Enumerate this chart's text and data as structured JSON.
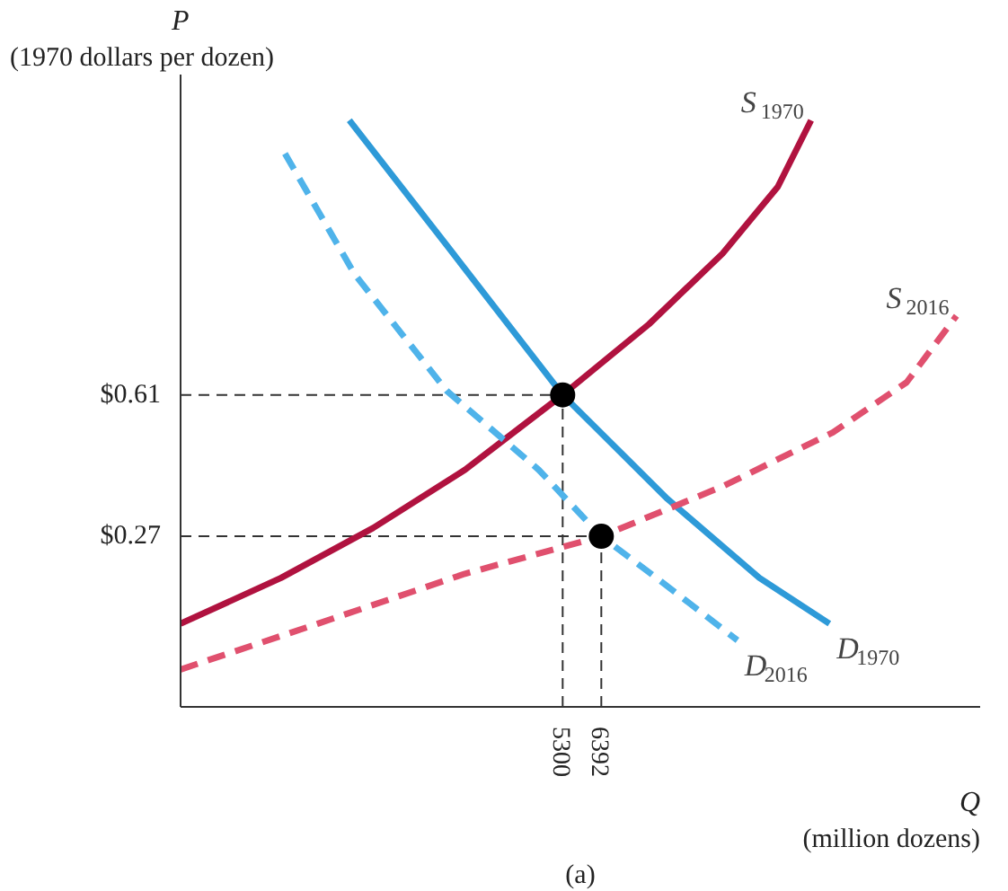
{
  "chart_data": {
    "type": "line",
    "xlabel": "Q",
    "ylabel": "P",
    "annotations": [
      "(1970 dollars per dozen)",
      "(million dozens)",
      "(a)"
    ],
    "xlim": [
      -5500,
      17100
    ],
    "ylim": [
      -0.14,
      1.38
    ],
    "xticks": [
      5300,
      6392
    ],
    "yticks": [
      {
        "value": 0.61,
        "label": "$0.61"
      },
      {
        "value": 0.27,
        "label": "$0.27"
      }
    ],
    "grid": false,
    "series": [
      {
        "name": "S$_{1970}$",
        "color": "#b0123f",
        "line_style": "solid",
        "x": [
          -5500,
          -2660,
          -60,
          2540,
          5300,
          7740,
          9820,
          11380,
          12320
        ],
        "values": [
          0.06,
          0.17,
          0.29,
          0.43,
          0.61,
          0.78,
          0.95,
          1.11,
          1.27
        ]
      },
      {
        "name": "D$_{1970}$",
        "color": "#2e9ad8",
        "line_style": "solid",
        "x": [
          -730,
          2020,
          5300,
          8260,
          10860,
          12840
        ],
        "values": [
          1.27,
          0.97,
          0.61,
          0.36,
          0.17,
          0.06
        ]
      },
      {
        "name": "D$_{2016}$",
        "color": "#4fb3ea",
        "line_style": "dashed",
        "x": [
          -2550,
          -580,
          2020,
          4620,
          6392,
          8260,
          10240
        ],
        "values": [
          1.19,
          0.9,
          0.62,
          0.43,
          0.27,
          0.15,
          0.02
        ]
      },
      {
        "name": "S$_{2016}$",
        "color": "#e0506e",
        "line_style": "dashed",
        "x": [
          -5500,
          -1620,
          2540,
          6392,
          9820,
          12940,
          15020,
          16430
        ],
        "values": [
          -0.05,
          0.06,
          0.18,
          0.27,
          0.39,
          0.52,
          0.64,
          0.8
        ]
      },
      {
        "type": "scatter",
        "marker": "circle",
        "color": "#000000",
        "x": [
          5300,
          6392
        ],
        "values": [
          0.61,
          0.27
        ]
      }
    ],
    "ref_lines": [
      {
        "axis": "y",
        "value": 0.61,
        "color": "#333333",
        "line_style": "dashed"
      },
      {
        "axis": "x",
        "value": 5300,
        "color": "#333333",
        "line_style": "dashed"
      },
      {
        "axis": "y",
        "value": 0.27,
        "color": "#333333",
        "line_style": "dashed"
      },
      {
        "axis": "x",
        "value": 6392,
        "color": "#333333",
        "line_style": "dashed"
      }
    ]
  }
}
